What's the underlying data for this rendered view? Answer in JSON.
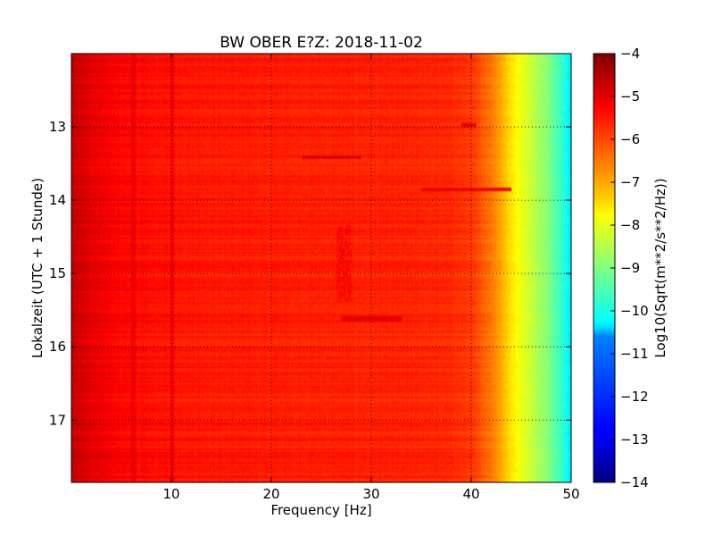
{
  "chart_data": {
    "type": "heatmap",
    "title": "BW OBER E?Z: 2018-11-02",
    "xlabel": "Frequency [Hz]",
    "ylabel": "Lokalzeit (UTC + 1 Stunde)",
    "xlim": [
      0,
      50
    ],
    "ylim": [
      17.85,
      12.0
    ],
    "xticks": [
      10,
      20,
      30,
      40,
      50
    ],
    "yticks": [
      13,
      14,
      15,
      16,
      17
    ],
    "grid": true,
    "colorbar": {
      "label": "Log10(Sqrt(m**2/s**2/Hz))",
      "range": [
        -14,
        -4
      ],
      "ticks": [
        -4,
        -5,
        -6,
        -7,
        -8,
        -9,
        -10,
        -11,
        -12,
        -13,
        -14
      ],
      "colormap": "jet"
    },
    "spectral_profile": {
      "frequency_hz": [
        0,
        2,
        5,
        8,
        15,
        25,
        35,
        38,
        40,
        41,
        42,
        43,
        44,
        45,
        46,
        47,
        48,
        49,
        50
      ],
      "log10_amplitude": [
        -4.7,
        -5.0,
        -5.3,
        -5.4,
        -5.5,
        -5.55,
        -5.6,
        -5.65,
        -5.8,
        -6.1,
        -6.4,
        -6.9,
        -7.5,
        -7.9,
        -8.3,
        -8.7,
        -9.1,
        -9.7,
        -10.5
      ]
    },
    "notable_features": [
      {
        "freq_range_hz": [
          35,
          44
        ],
        "time": 13.85,
        "log10_amplitude": -5.0
      },
      {
        "freq_range_hz": [
          23,
          29
        ],
        "time": 13.42,
        "log10_amplitude": -4.8
      },
      {
        "freq_range_hz": [
          39,
          40.5
        ],
        "time": 12.98,
        "log10_amplitude": -4.9
      },
      {
        "freq_range_hz": [
          27,
          33
        ],
        "time": 15.62,
        "log10_amplitude": -4.9
      },
      {
        "freq_range_hz": [
          26.5,
          28
        ],
        "time_range": [
          14.35,
          15.4
        ],
        "log10_amplitude": -5.0
      }
    ]
  }
}
